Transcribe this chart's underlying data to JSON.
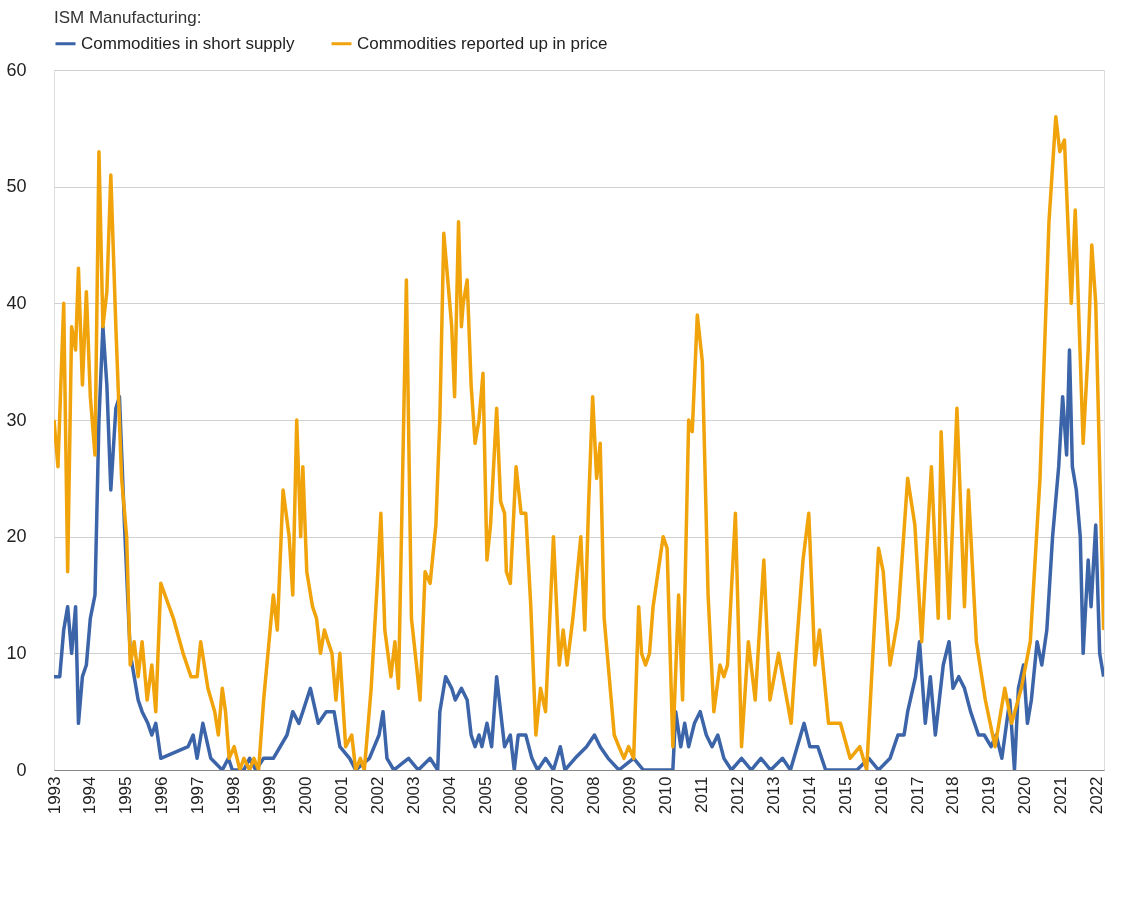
{
  "chart_data": {
    "type": "line",
    "legend_title": "ISM Manufacturing:",
    "legend": "top left",
    "grid": "y",
    "line_style": "solid",
    "xlim": [
      1993,
      2022.2
    ],
    "xticks": [
      1993,
      1994,
      1995,
      1996,
      1997,
      1998,
      1999,
      2000,
      2001,
      2002,
      2003,
      2004,
      2005,
      2006,
      2007,
      2008,
      2009,
      2010,
      2011,
      2012,
      2013,
      2014,
      2015,
      2016,
      2017,
      2018,
      2019,
      2020,
      2021,
      2022
    ],
    "ylim": [
      0,
      60
    ],
    "yticks": [
      0,
      10,
      20,
      30,
      40,
      50,
      60
    ],
    "series": [
      {
        "name": "Commodities in short supply",
        "color": "#3c64a8",
        "x": [
          1993.0,
          1993.16,
          1993.27,
          1993.38,
          1993.49,
          1993.6,
          1993.68,
          1993.79,
          1993.9,
          1994.01,
          1994.14,
          1994.25,
          1994.36,
          1994.47,
          1994.58,
          1994.72,
          1994.82,
          1994.96,
          1995.12,
          1995.23,
          1995.34,
          1995.45,
          1995.61,
          1995.72,
          1995.83,
          1995.97,
          1996.73,
          1996.87,
          1996.98,
          1997.14,
          1997.36,
          1997.68,
          1997.85,
          1997.96,
          1998.28,
          1998.44,
          1998.61,
          1998.83,
          1999.1,
          1999.48,
          1999.64,
          1999.81,
          1999.92,
          2000.13,
          2000.35,
          2000.57,
          2000.79,
          2000.95,
          2001.22,
          2001.39,
          2001.77,
          2002.04,
          2002.15,
          2002.26,
          2002.45,
          2002.86,
          2003.13,
          2003.46,
          2003.67,
          2003.73,
          2003.89,
          2004.06,
          2004.16,
          2004.33,
          2004.49,
          2004.6,
          2004.71,
          2004.82,
          2004.9,
          2005.04,
          2005.17,
          2005.31,
          2005.42,
          2005.53,
          2005.69,
          2005.8,
          2005.91,
          2006.12,
          2006.29,
          2006.45,
          2006.67,
          2006.89,
          2007.08,
          2007.21,
          2007.49,
          2007.81,
          2008.03,
          2008.19,
          2008.41,
          2008.71,
          2009.12,
          2009.39,
          2010.21,
          2010.29,
          2010.43,
          2010.54,
          2010.65,
          2010.81,
          2010.97,
          2011.14,
          2011.3,
          2011.46,
          2011.63,
          2011.84,
          2012.12,
          2012.39,
          2012.66,
          2012.93,
          2013.26,
          2013.48,
          2013.86,
          2014.02,
          2014.24,
          2014.46,
          2014.95,
          2015.33,
          2015.66,
          2015.93,
          2016.25,
          2016.47,
          2016.64,
          2016.74,
          2016.96,
          2017.07,
          2017.23,
          2017.37,
          2017.51,
          2017.73,
          2017.89,
          2018.0,
          2018.16,
          2018.32,
          2018.49,
          2018.71,
          2018.87,
          2019.06,
          2019.2,
          2019.36,
          2019.58,
          2019.71,
          2019.82,
          2019.96,
          2020.07,
          2020.18,
          2020.34,
          2020.47,
          2020.61,
          2020.77,
          2020.94,
          2021.05,
          2021.16,
          2021.24,
          2021.32,
          2021.43,
          2021.54,
          2021.62,
          2021.76,
          2021.84,
          2021.97,
          2022.08,
          2022.19
        ],
        "values": [
          8,
          8,
          12,
          14,
          10,
          14,
          4,
          8,
          9,
          13,
          15,
          30,
          38,
          33,
          24,
          31,
          32,
          21,
          10,
          8,
          6,
          5,
          4,
          3,
          4,
          1,
          2,
          3,
          1,
          4,
          1,
          0,
          1,
          0,
          0,
          1,
          0,
          1,
          1,
          3,
          5,
          4,
          5,
          7,
          4,
          5,
          5,
          2,
          1,
          0,
          1,
          3,
          5,
          1,
          0,
          1,
          0,
          1,
          0,
          5,
          8,
          7,
          6,
          7,
          6,
          3,
          2,
          3,
          2,
          4,
          2,
          8,
          5,
          2,
          3,
          0,
          3,
          3,
          1,
          0,
          1,
          0,
          2,
          0,
          1,
          2,
          3,
          2,
          1,
          0,
          1,
          0,
          0,
          5,
          2,
          4,
          2,
          4,
          5,
          3,
          2,
          3,
          1,
          0,
          1,
          0,
          1,
          0,
          1,
          0,
          4,
          2,
          2,
          0,
          0,
          0,
          1,
          0,
          1,
          3,
          3,
          5,
          8,
          11,
          4,
          8,
          3,
          9,
          11,
          7,
          8,
          7,
          5,
          3,
          3,
          2,
          3,
          1,
          6,
          0,
          7,
          9,
          4,
          6,
          11,
          9,
          12,
          20,
          26,
          32,
          27,
          36,
          26,
          24,
          20,
          10,
          18,
          14,
          21,
          10,
          8
        ]
      },
      {
        "name": "Commodities reported up in price",
        "color": "#f0a30a",
        "x": [
          1993.0,
          1993.11,
          1993.27,
          1993.38,
          1993.49,
          1993.6,
          1993.68,
          1993.79,
          1993.9,
          1994.01,
          1994.14,
          1994.25,
          1994.36,
          1994.47,
          1994.58,
          1994.72,
          1994.88,
          1995.02,
          1995.12,
          1995.23,
          1995.34,
          1995.45,
          1995.59,
          1995.72,
          1995.83,
          1995.97,
          1996.32,
          1996.59,
          1996.81,
          1996.98,
          1997.08,
          1997.28,
          1997.47,
          1997.57,
          1997.68,
          1997.77,
          1997.87,
          1998.01,
          1998.17,
          1998.28,
          1998.44,
          1998.56,
          1998.69,
          1998.83,
          1999.1,
          1999.21,
          1999.37,
          1999.54,
          1999.64,
          1999.75,
          1999.86,
          1999.92,
          2000.03,
          2000.19,
          2000.3,
          2000.41,
          2000.52,
          2000.62,
          2000.73,
          2000.84,
          2000.95,
          2001.11,
          2001.28,
          2001.39,
          2001.52,
          2001.63,
          2001.82,
          2001.99,
          2002.09,
          2002.2,
          2002.37,
          2002.48,
          2002.58,
          2002.8,
          2002.94,
          2003.08,
          2003.18,
          2003.32,
          2003.46,
          2003.62,
          2003.73,
          2003.84,
          2003.95,
          2004.06,
          2004.14,
          2004.25,
          2004.33,
          2004.38,
          2004.49,
          2004.6,
          2004.71,
          2004.82,
          2004.93,
          2005.04,
          2005.14,
          2005.31,
          2005.42,
          2005.53,
          2005.58,
          2005.69,
          2005.85,
          2005.99,
          2006.12,
          2006.26,
          2006.4,
          2006.53,
          2006.67,
          2006.89,
          2007.05,
          2007.16,
          2007.27,
          2007.43,
          2007.65,
          2007.76,
          2007.87,
          2007.98,
          2008.09,
          2008.19,
          2008.3,
          2008.44,
          2008.58,
          2008.71,
          2008.85,
          2008.98,
          2009.12,
          2009.26,
          2009.34,
          2009.45,
          2009.56,
          2009.66,
          2009.8,
          2009.94,
          2010.05,
          2010.21,
          2010.37,
          2010.48,
          2010.65,
          2010.75,
          2010.89,
          2011.03,
          2011.19,
          2011.35,
          2011.52,
          2011.63,
          2011.73,
          2011.95,
          2012.12,
          2012.31,
          2012.5,
          2012.74,
          2012.91,
          2013.15,
          2013.5,
          2013.61,
          2013.83,
          2013.99,
          2014.16,
          2014.29,
          2014.54,
          2014.87,
          2015.14,
          2015.41,
          2015.6,
          2015.93,
          2016.06,
          2016.25,
          2016.47,
          2016.74,
          2016.94,
          2017.13,
          2017.4,
          2017.59,
          2017.67,
          2017.89,
          2018.11,
          2018.32,
          2018.43,
          2018.65,
          2018.9,
          2019.17,
          2019.44,
          2019.63,
          2019.9,
          2020.15,
          2020.42,
          2020.67,
          2020.86,
          2020.97,
          2021.1,
          2021.29,
          2021.4,
          2021.62,
          2021.76,
          2021.86,
          2021.97,
          2022.19
        ],
        "values": [
          30,
          26,
          40,
          17,
          38,
          36,
          43,
          33,
          41,
          32,
          27,
          53,
          38,
          41,
          51,
          38,
          25,
          20,
          9,
          11,
          8,
          11,
          6,
          9,
          5,
          16,
          13,
          10,
          8,
          8,
          11,
          7,
          5,
          3,
          7,
          5,
          1,
          2,
          0,
          1,
          0,
          1,
          0,
          6,
          15,
          12,
          24,
          20,
          15,
          30,
          20,
          26,
          17,
          14,
          13,
          10,
          12,
          11,
          10,
          6,
          10,
          2,
          3,
          0,
          1,
          0,
          7,
          16,
          22,
          12,
          8,
          11,
          7,
          42,
          13,
          9,
          6,
          17,
          16,
          21,
          30,
          46,
          42,
          38,
          32,
          47,
          38,
          40,
          42,
          33,
          28,
          30,
          34,
          18,
          21,
          31,
          23,
          22,
          17,
          16,
          26,
          22,
          22,
          14,
          3,
          7,
          5,
          20,
          9,
          12,
          9,
          13,
          20,
          12,
          23,
          32,
          25,
          28,
          13,
          8,
          3,
          2,
          1,
          2,
          1,
          14,
          10,
          9,
          10,
          14,
          17,
          20,
          19,
          2,
          15,
          6,
          30,
          29,
          39,
          35,
          15,
          5,
          9,
          8,
          9,
          22,
          2,
          11,
          6,
          18,
          6,
          10,
          4,
          9,
          18,
          22,
          9,
          12,
          4,
          4,
          1,
          2,
          0,
          19,
          17,
          9,
          13,
          25,
          21,
          11,
          26,
          13,
          29,
          13,
          31,
          14,
          24,
          11,
          6,
          2,
          7,
          4,
          7,
          11,
          25,
          47,
          56,
          53,
          54,
          40,
          48,
          28,
          36,
          45,
          40,
          12
        ]
      }
    ]
  }
}
